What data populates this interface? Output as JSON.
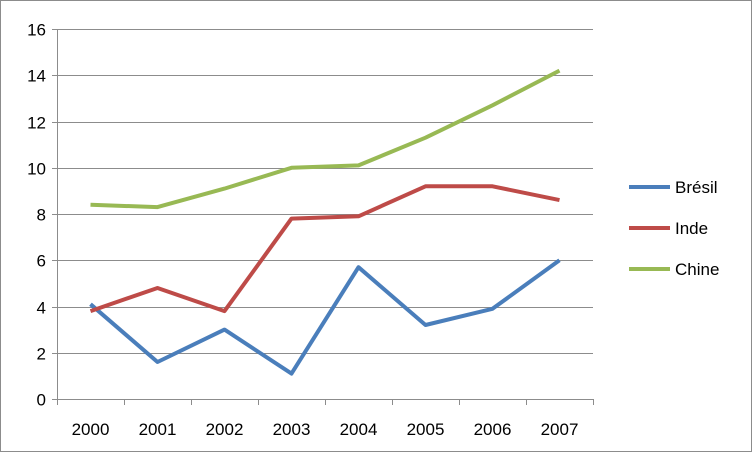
{
  "chart_data": {
    "type": "line",
    "title": "",
    "xlabel": "",
    "ylabel": "",
    "categories": [
      "2000",
      "2001",
      "2002",
      "2003",
      "2004",
      "2005",
      "2006",
      "2007"
    ],
    "ylim": [
      0,
      16
    ],
    "yticks": [
      0,
      2,
      4,
      6,
      8,
      10,
      12,
      14,
      16
    ],
    "grid": "horizontal",
    "legend_position": "right",
    "series": [
      {
        "name": "Brésil",
        "color": "#4a7ebb",
        "values": [
          4.1,
          1.6,
          3.0,
          1.1,
          5.7,
          3.2,
          3.9,
          6.0
        ]
      },
      {
        "name": "Inde",
        "color": "#be4b48",
        "values": [
          3.8,
          4.8,
          3.8,
          7.8,
          7.9,
          9.2,
          9.2,
          8.6
        ]
      },
      {
        "name": "Chine",
        "color": "#98b954",
        "values": [
          8.4,
          8.3,
          9.1,
          10.0,
          10.1,
          11.3,
          12.7,
          14.2
        ]
      }
    ]
  }
}
